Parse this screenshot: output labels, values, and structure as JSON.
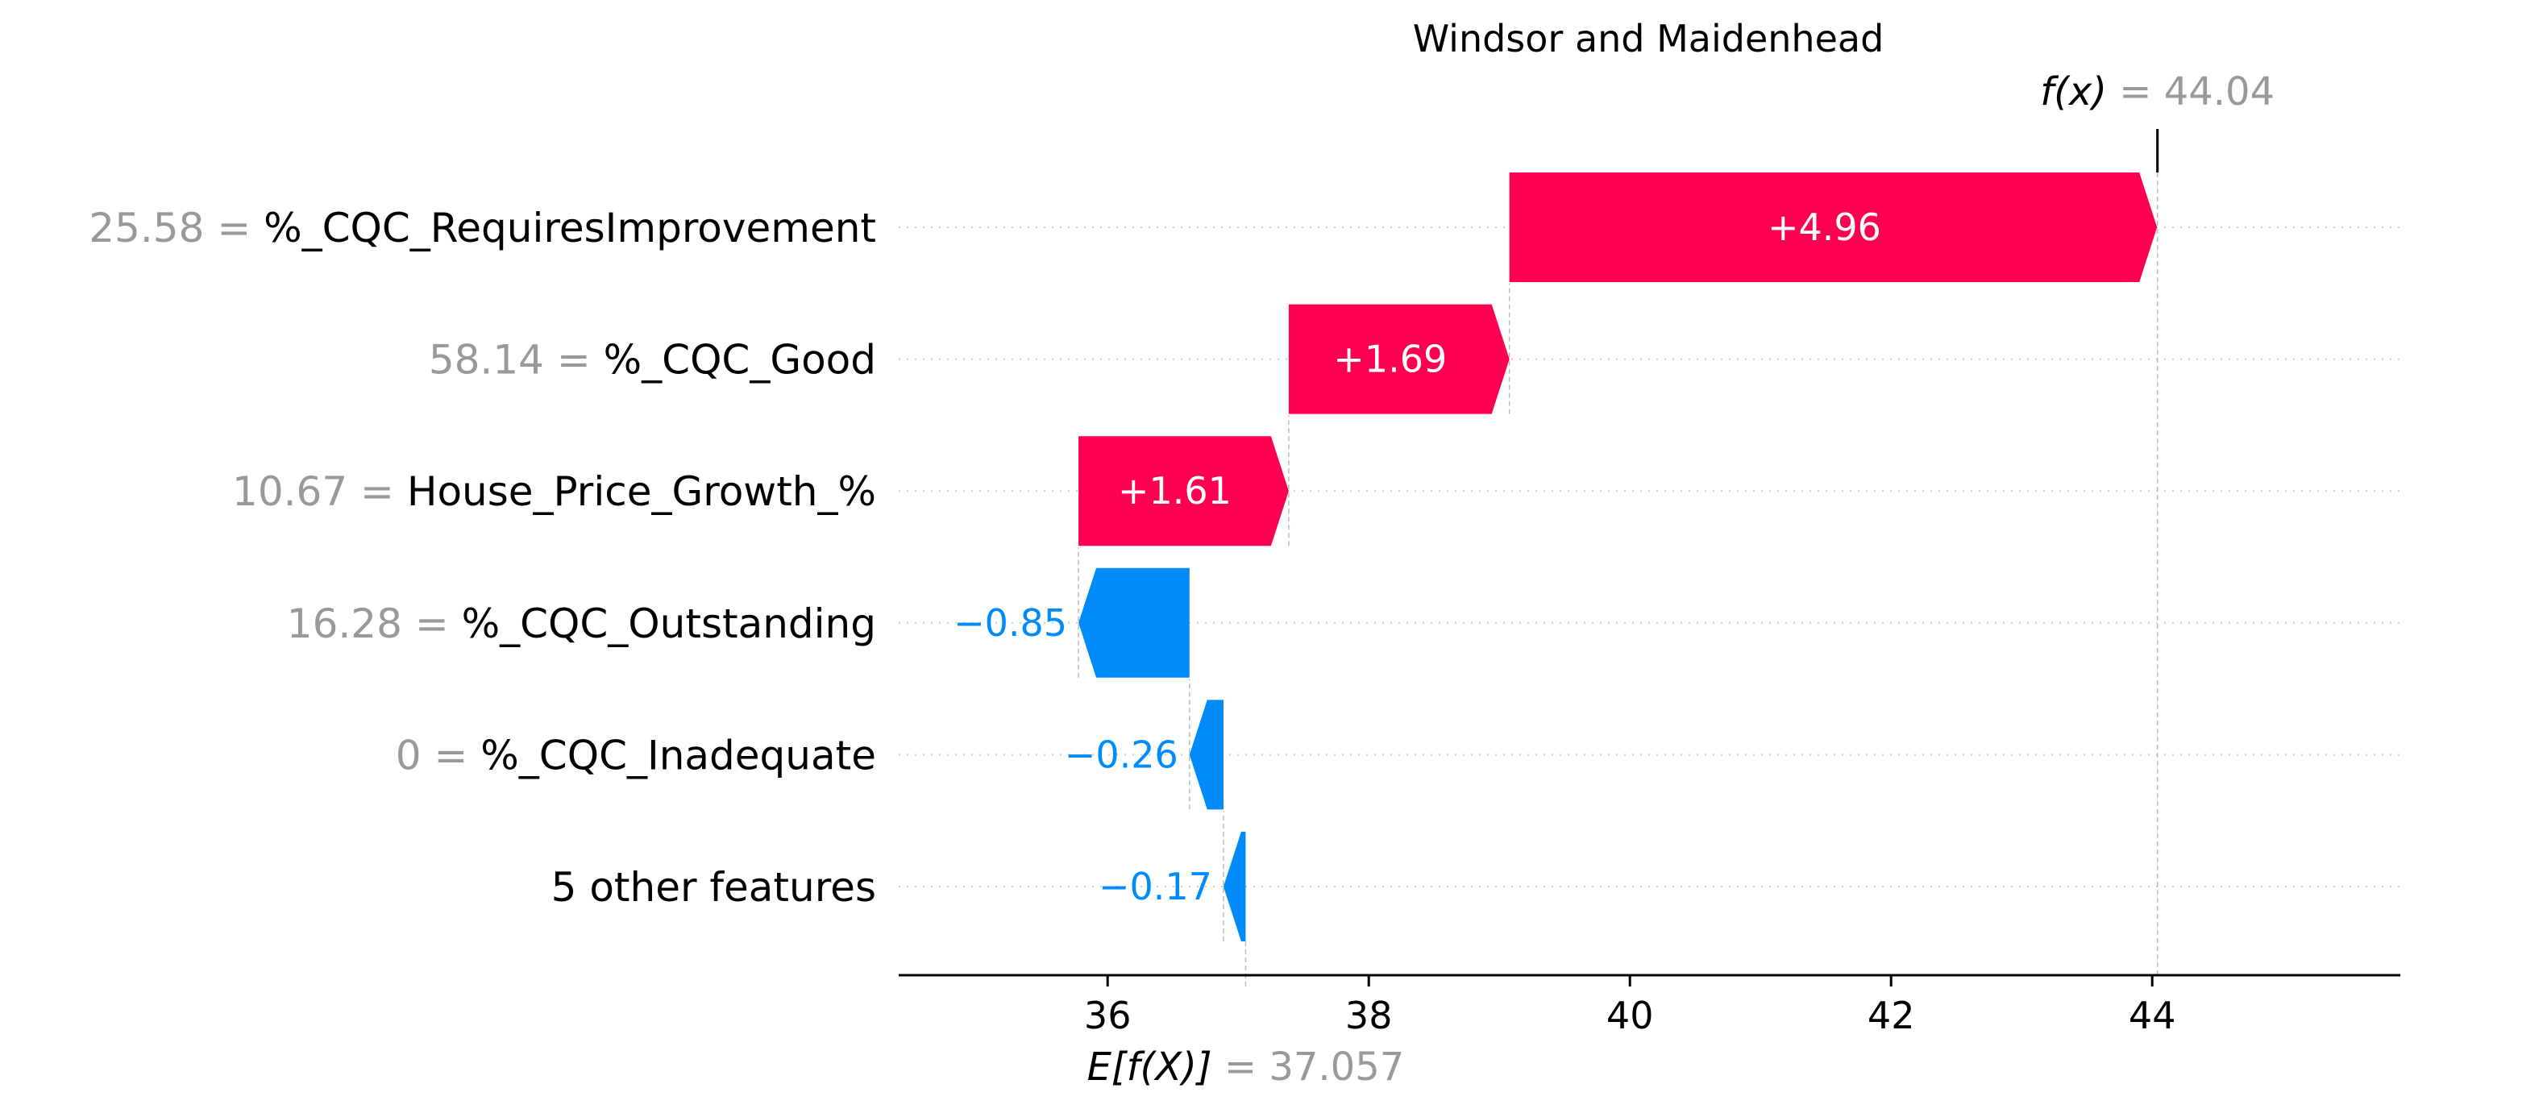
{
  "chart_data": {
    "type": "bar",
    "subtype": "shap-waterfall",
    "title": "Windsor and Maidenhead",
    "base_value": 37.057,
    "base_value_label": "37.057",
    "output_value": 44.04,
    "output_value_label": "44.04",
    "fx_label": "f(x)",
    "efx_label": "E[f(X)]",
    "equals": "=",
    "xlim": [
      34.4,
      45.9
    ],
    "xticks": [
      36,
      38,
      40,
      42,
      44
    ],
    "xtick_labels": [
      "36",
      "38",
      "40",
      "42",
      "44"
    ],
    "grid": "horizontal-dotted",
    "features": [
      {
        "value": "25.58",
        "name": "%_CQC_RequiresImprovement",
        "contribution": 4.96,
        "label": "+4.96"
      },
      {
        "value": "58.14",
        "name": "%_CQC_Good",
        "contribution": 1.69,
        "label": "+1.69"
      },
      {
        "value": "10.67",
        "name": "House_Price_Growth_%",
        "contribution": 1.61,
        "label": "+1.61"
      },
      {
        "value": "16.28",
        "name": "%_CQC_Outstanding",
        "contribution": -0.85,
        "label": "−0.85"
      },
      {
        "value": "0",
        "name": "%_CQC_Inadequate",
        "contribution": -0.26,
        "label": "−0.26"
      },
      {
        "value": "",
        "name": "5 other features",
        "contribution": -0.17,
        "label": "−0.17"
      }
    ]
  },
  "colors": {
    "positive": "#ff0051",
    "negative": "#008bfb",
    "value_gray": "#999999"
  }
}
